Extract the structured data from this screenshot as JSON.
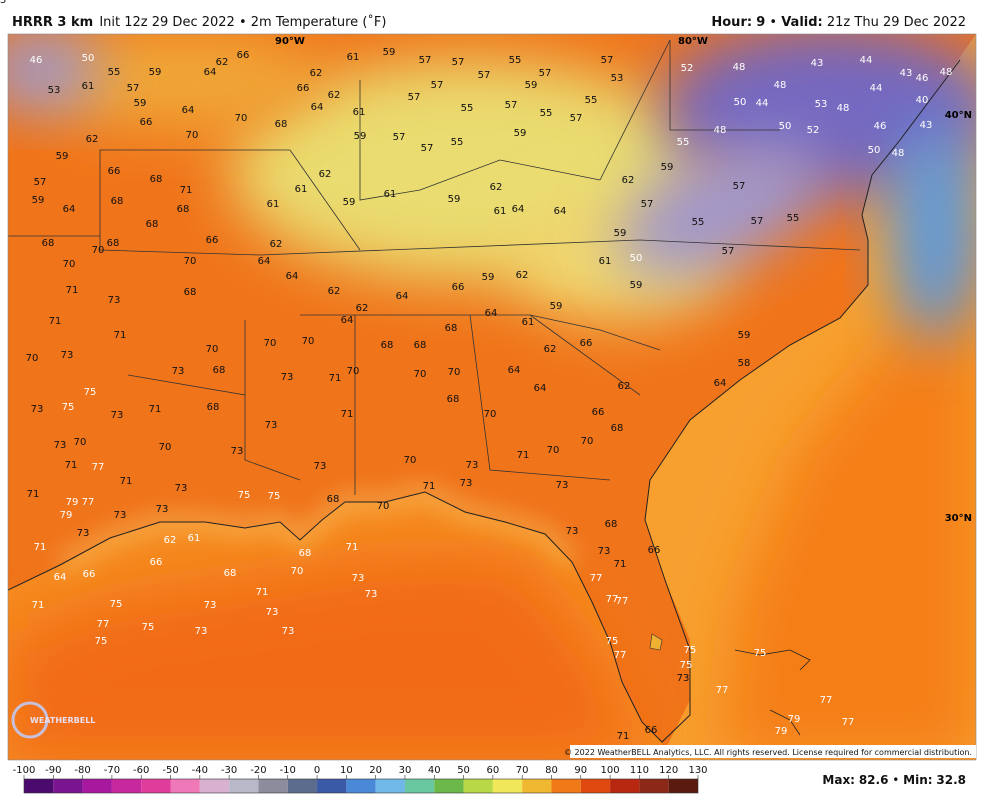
{
  "header": {
    "model": "HRRR 3 km",
    "init": "Init 12z 29 Dec 2022",
    "dot": "•",
    "field": "2m Temperature (˚F)",
    "hour_label": "Hour:",
    "hour": 9,
    "valid_label": "Valid:",
    "valid": "21z Thu 29 Dec 2022"
  },
  "map": {
    "graticule": [
      "90°W",
      "80°W",
      "40°N",
      "30°N"
    ],
    "logo": "WEATHERBELL",
    "copyright": "© 2022 WeatherBELL Analytics, LLC. All rights reserved. License required for commercial distribution.",
    "stations": [
      [
        50,
        46,
        55,
        59,
        64,
        62,
        66,
        61,
        59,
        57,
        57,
        55,
        57,
        57,
        53,
        52,
        48,
        43,
        44,
        43,
        48
      ],
      [
        53,
        61,
        57,
        59,
        66,
        64,
        70,
        70,
        68,
        62,
        66,
        64,
        62,
        61,
        59,
        57,
        57,
        55,
        55,
        57,
        57,
        57,
        59,
        55,
        57,
        55,
        57,
        59
      ],
      [
        48,
        50,
        44,
        53,
        48,
        44,
        46,
        40,
        46,
        43,
        48,
        55,
        50,
        52,
        50,
        48
      ],
      [
        59,
        62,
        66,
        68,
        71,
        68,
        68,
        57,
        59,
        64,
        68,
        70,
        68,
        68,
        66,
        61,
        62,
        61,
        62,
        59,
        61,
        59,
        62,
        61,
        64,
        64,
        62,
        59,
        57,
        59,
        55,
        57,
        57,
        55,
        57,
        59,
        61,
        50
      ],
      [
        70,
        70,
        71,
        73,
        68,
        64,
        64,
        62,
        62,
        64,
        66,
        59,
        62,
        59,
        61,
        64,
        68,
        64
      ],
      [
        71,
        70,
        73,
        71,
        70,
        73,
        68,
        70,
        70,
        73,
        71,
        70,
        68,
        68,
        70,
        70,
        64,
        62,
        64,
        66,
        62,
        64,
        58,
        59,
        55
      ],
      [
        75,
        73,
        75,
        70,
        73,
        73,
        71,
        68,
        73,
        71,
        68,
        70,
        66,
        68,
        70,
        70,
        71,
        70,
        73,
        73,
        73,
        70
      ],
      [
        71,
        77,
        71,
        73,
        75,
        75,
        68,
        70,
        73,
        73,
        71,
        68,
        73,
        73,
        71,
        66,
        77,
        77,
        77,
        75,
        77,
        75,
        75,
        73,
        77,
        75,
        77,
        77,
        79,
        79,
        71,
        66
      ],
      [
        79,
        77,
        71,
        79,
        73,
        73,
        73,
        62,
        61,
        66,
        71,
        64,
        66,
        71,
        75,
        77,
        75,
        75,
        73,
        73,
        68,
        71,
        70,
        73,
        73,
        71,
        73,
        73,
        68
      ]
    ]
  },
  "colorbar": {
    "ticks": [
      -100,
      -90,
      -80,
      -70,
      -60,
      -50,
      -40,
      -30,
      -20,
      -10,
      0,
      10,
      20,
      30,
      40,
      50,
      60,
      70,
      80,
      90,
      100,
      110,
      120,
      130
    ],
    "colors": [
      "#4b0a6e",
      "#7a1490",
      "#a8189e",
      "#c8289e",
      "#e03c9c",
      "#ee78b8",
      "#d8b0d0",
      "#b8b8c8",
      "#8c8c9c",
      "#5c6c8c",
      "#3a5aa8",
      "#4a88d8",
      "#70b8e8",
      "#6ac8a0",
      "#6cb848",
      "#b8d848",
      "#f0e858",
      "#f0b830",
      "#f07a18",
      "#e04a10",
      "#b82810",
      "#8c2818",
      "#5a1a10"
    ]
  },
  "footer": {
    "max_label": "Max:",
    "max": 82.6,
    "dot": "•",
    "min_label": "Min:",
    "min": 32.8
  }
}
